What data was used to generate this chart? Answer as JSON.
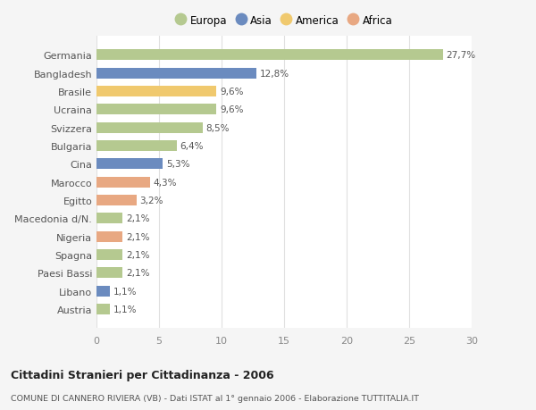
{
  "categories": [
    "Germania",
    "Bangladesh",
    "Brasile",
    "Ucraina",
    "Svizzera",
    "Bulgaria",
    "Cina",
    "Marocco",
    "Egitto",
    "Macedonia d/N.",
    "Nigeria",
    "Spagna",
    "Paesi Bassi",
    "Libano",
    "Austria"
  ],
  "values": [
    27.7,
    12.8,
    9.6,
    9.6,
    8.5,
    6.4,
    5.3,
    4.3,
    3.2,
    2.1,
    2.1,
    2.1,
    2.1,
    1.1,
    1.1
  ],
  "labels": [
    "27,7%",
    "12,8%",
    "9,6%",
    "9,6%",
    "8,5%",
    "6,4%",
    "5,3%",
    "4,3%",
    "3,2%",
    "2,1%",
    "2,1%",
    "2,1%",
    "2,1%",
    "1,1%",
    "1,1%"
  ],
  "colors": [
    "#b5c990",
    "#6b8bbf",
    "#f0c96e",
    "#b5c990",
    "#b5c990",
    "#b5c990",
    "#6b8bbf",
    "#e8a882",
    "#e8a882",
    "#b5c990",
    "#e8a882",
    "#b5c990",
    "#b5c990",
    "#6b8bbf",
    "#b5c990"
  ],
  "legend_labels": [
    "Europa",
    "Asia",
    "America",
    "Africa"
  ],
  "legend_colors": [
    "#b5c990",
    "#6b8bbf",
    "#f0c96e",
    "#e8a882"
  ],
  "title": "Cittadini Stranieri per Cittadinanza - 2006",
  "subtitle": "COMUNE DI CANNERO RIVIERA (VB) - Dati ISTAT al 1° gennaio 2006 - Elaborazione TUTTITALIA.IT",
  "xlim": [
    0,
    30
  ],
  "xticks": [
    0,
    5,
    10,
    15,
    20,
    25,
    30
  ],
  "background_color": "#f5f5f5",
  "plot_bg_color": "#ffffff",
  "grid_color": "#e0e0e0"
}
